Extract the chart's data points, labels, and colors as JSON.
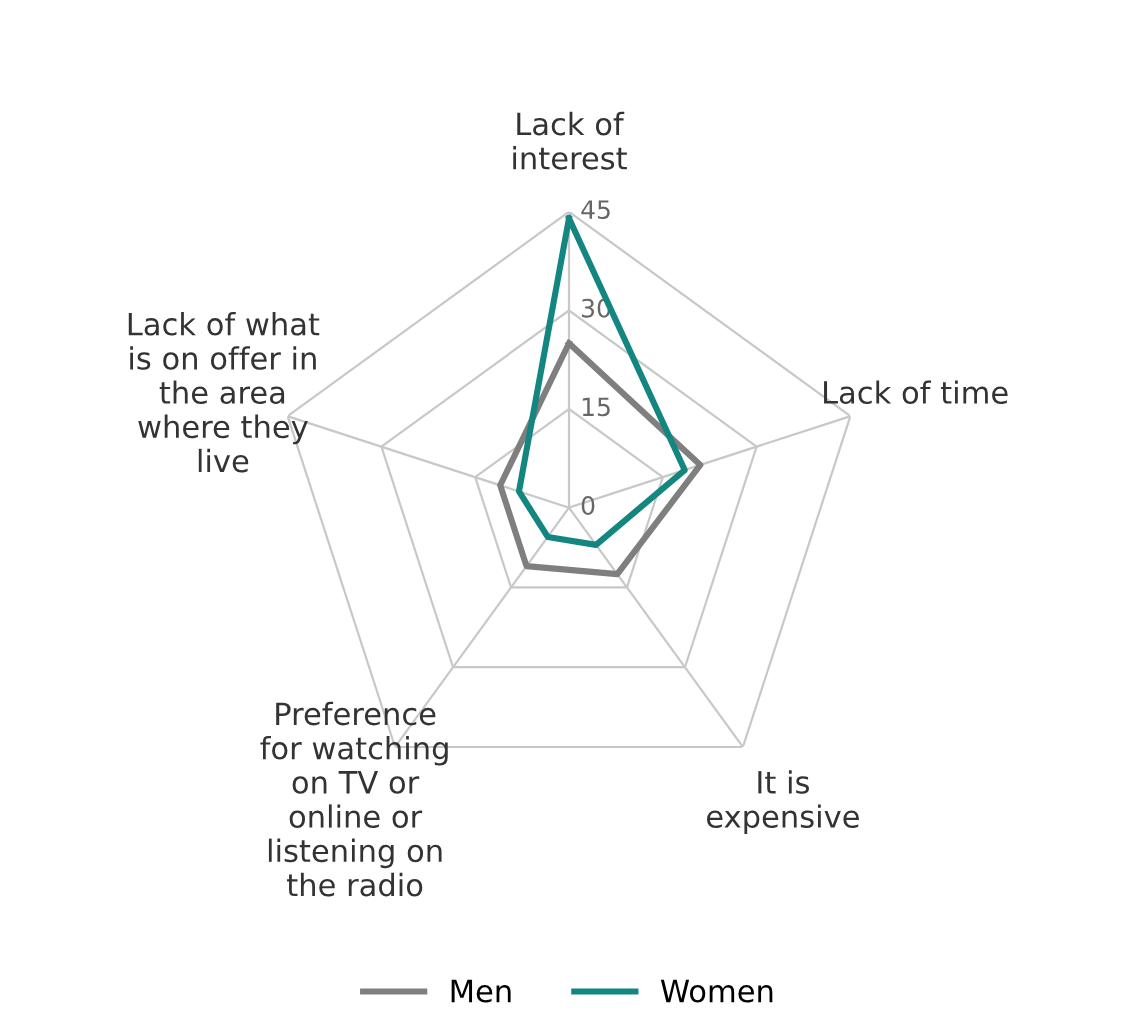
{
  "chart_data": {
    "type": "radar",
    "categories": [
      "Lack of\ninterest",
      "Lack of time",
      "It is\nexpensive",
      "Preference\nfor watching\non TV or\nonline or\nlistening on\nthe radio",
      "Lack of what\nis on offer in\nthe area\nwhere they\nlive"
    ],
    "series": [
      {
        "name": "Men",
        "color": "#7f7f7f",
        "values": [
          25,
          21,
          12.5,
          11,
          11
        ]
      },
      {
        "name": "Women",
        "color": "#138680",
        "values": [
          44,
          18.5,
          7,
          5.5,
          8
        ]
      }
    ],
    "ylim": [
      0,
      45
    ],
    "yticks": [
      0,
      15,
      30,
      45
    ],
    "grid": true,
    "legend": "bottom",
    "marker": "none",
    "line_style": "solid"
  }
}
